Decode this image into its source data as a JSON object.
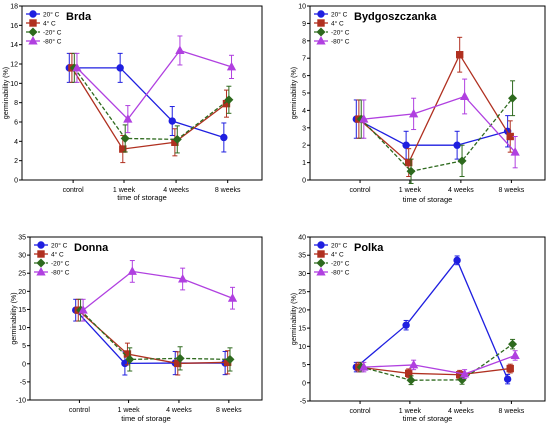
{
  "chart_data": [
    {
      "type": "line",
      "title": "Brda",
      "xlabel": "time of storage",
      "ylabel": "germinability (%)",
      "categories": [
        "control",
        "1 week",
        "4 weeks",
        "8 weeks"
      ],
      "ylim": [
        0,
        18
      ],
      "yticks": [
        0,
        2,
        4,
        6,
        8,
        10,
        12,
        14,
        16,
        18
      ],
      "legend_position": "top-left",
      "series": [
        {
          "name": "20° C",
          "values": [
            11.6,
            11.6,
            6.1,
            4.4
          ],
          "errors": [
            1.5,
            1.5,
            1.5,
            1.5
          ],
          "color": "#1f1fe0",
          "marker": "circle"
        },
        {
          "name": "4° C",
          "values": [
            11.6,
            3.2,
            3.9,
            7.9
          ],
          "errors": [
            1.5,
            1.4,
            1.4,
            1.4
          ],
          "color": "#b03020",
          "marker": "square"
        },
        {
          "name": "-20° C",
          "values": [
            11.6,
            4.3,
            4.2,
            8.3
          ],
          "errors": [
            1.5,
            1.4,
            1.4,
            1.4
          ],
          "color": "#2e6a1e",
          "marker": "diamond"
        },
        {
          "name": "-80° C",
          "values": [
            11.6,
            6.3,
            13.4,
            11.7
          ],
          "errors": [
            1.5,
            1.4,
            1.5,
            1.2
          ],
          "color": "#b040e0",
          "marker": "triangle"
        }
      ]
    },
    {
      "type": "line",
      "title": "Bydgoszczanka",
      "xlabel": "time of storage",
      "ylabel": "germinability (%)",
      "categories": [
        "control",
        "1 week",
        "4 weeks",
        "8 weeks"
      ],
      "ylim": [
        0,
        10
      ],
      "yticks": [
        0,
        1,
        2,
        3,
        4,
        5,
        6,
        7,
        8,
        9,
        10
      ],
      "legend_position": "top-left",
      "series": [
        {
          "name": "20° C",
          "values": [
            3.5,
            2.0,
            2.0,
            2.8
          ],
          "errors": [
            1.1,
            0.8,
            0.8,
            0.9
          ],
          "color": "#1f1fe0",
          "marker": "circle"
        },
        {
          "name": "4° C",
          "values": [
            3.5,
            1.0,
            7.2,
            2.5
          ],
          "errors": [
            1.1,
            0.8,
            1.0,
            0.9
          ],
          "color": "#b03020",
          "marker": "square"
        },
        {
          "name": "-20° C",
          "values": [
            3.5,
            0.5,
            1.1,
            4.7
          ],
          "errors": [
            1.1,
            0.7,
            0.9,
            1.0
          ],
          "color": "#2e6a1e",
          "marker": "diamond"
        },
        {
          "name": "-80° C",
          "values": [
            3.5,
            3.8,
            4.8,
            1.6
          ],
          "errors": [
            1.1,
            0.9,
            1.0,
            0.9
          ],
          "color": "#b040e0",
          "marker": "triangle"
        }
      ]
    },
    {
      "type": "line",
      "title": "Donna",
      "xlabel": "time of storage",
      "ylabel": "germinability (%)",
      "categories": [
        "control",
        "1 week",
        "4 weeks",
        "8 weeks"
      ],
      "ylim": [
        -10,
        35
      ],
      "yticks": [
        -10,
        -5,
        0,
        5,
        10,
        15,
        20,
        25,
        30,
        35
      ],
      "legend_position": "top-left",
      "series": [
        {
          "name": "20° C",
          "values": [
            14.8,
            0.1,
            0.2,
            0.2
          ],
          "errors": [
            3.0,
            3.2,
            3.2,
            3.2
          ],
          "color": "#1f1fe0",
          "marker": "circle"
        },
        {
          "name": "4° C",
          "values": [
            14.8,
            2.7,
            0.1,
            0.4
          ],
          "errors": [
            3.0,
            3.0,
            3.2,
            3.2
          ],
          "color": "#b03020",
          "marker": "square"
        },
        {
          "name": "-20° C",
          "values": [
            14.8,
            1.2,
            1.5,
            1.2
          ],
          "errors": [
            3.0,
            3.2,
            3.2,
            3.2
          ],
          "color": "#2e6a1e",
          "marker": "diamond"
        },
        {
          "name": "-80° C",
          "values": [
            14.8,
            25.5,
            23.4,
            18.1
          ],
          "errors": [
            3.0,
            3.0,
            3.0,
            3.0
          ],
          "color": "#b040e0",
          "marker": "triangle"
        }
      ]
    },
    {
      "type": "line",
      "title": "Polka",
      "xlabel": "time of storage",
      "ylabel": "germinability (%)",
      "categories": [
        "control",
        "1 week",
        "4 weeks",
        "8 weeks"
      ],
      "ylim": [
        -5,
        40
      ],
      "yticks": [
        -5,
        0,
        5,
        10,
        15,
        20,
        25,
        30,
        35,
        40
      ],
      "legend_position": "top-left",
      "series": [
        {
          "name": "20° C",
          "values": [
            4.3,
            15.8,
            33.6,
            1.0
          ],
          "errors": [
            1.3,
            1.3,
            1.2,
            1.3
          ],
          "color": "#1f1fe0",
          "marker": "circle"
        },
        {
          "name": "4° C",
          "values": [
            4.3,
            2.6,
            2.2,
            3.9
          ],
          "errors": [
            1.3,
            1.2,
            1.2,
            1.2
          ],
          "color": "#b03020",
          "marker": "square"
        },
        {
          "name": "-20° C",
          "values": [
            4.3,
            0.7,
            0.8,
            10.6
          ],
          "errors": [
            1.3,
            1.2,
            1.2,
            1.3
          ],
          "color": "#2e6a1e",
          "marker": "diamond"
        },
        {
          "name": "-80° C",
          "values": [
            4.3,
            4.9,
            2.4,
            7.5
          ],
          "errors": [
            1.3,
            1.3,
            1.2,
            1.3
          ],
          "color": "#b040e0",
          "marker": "triangle"
        }
      ]
    }
  ]
}
